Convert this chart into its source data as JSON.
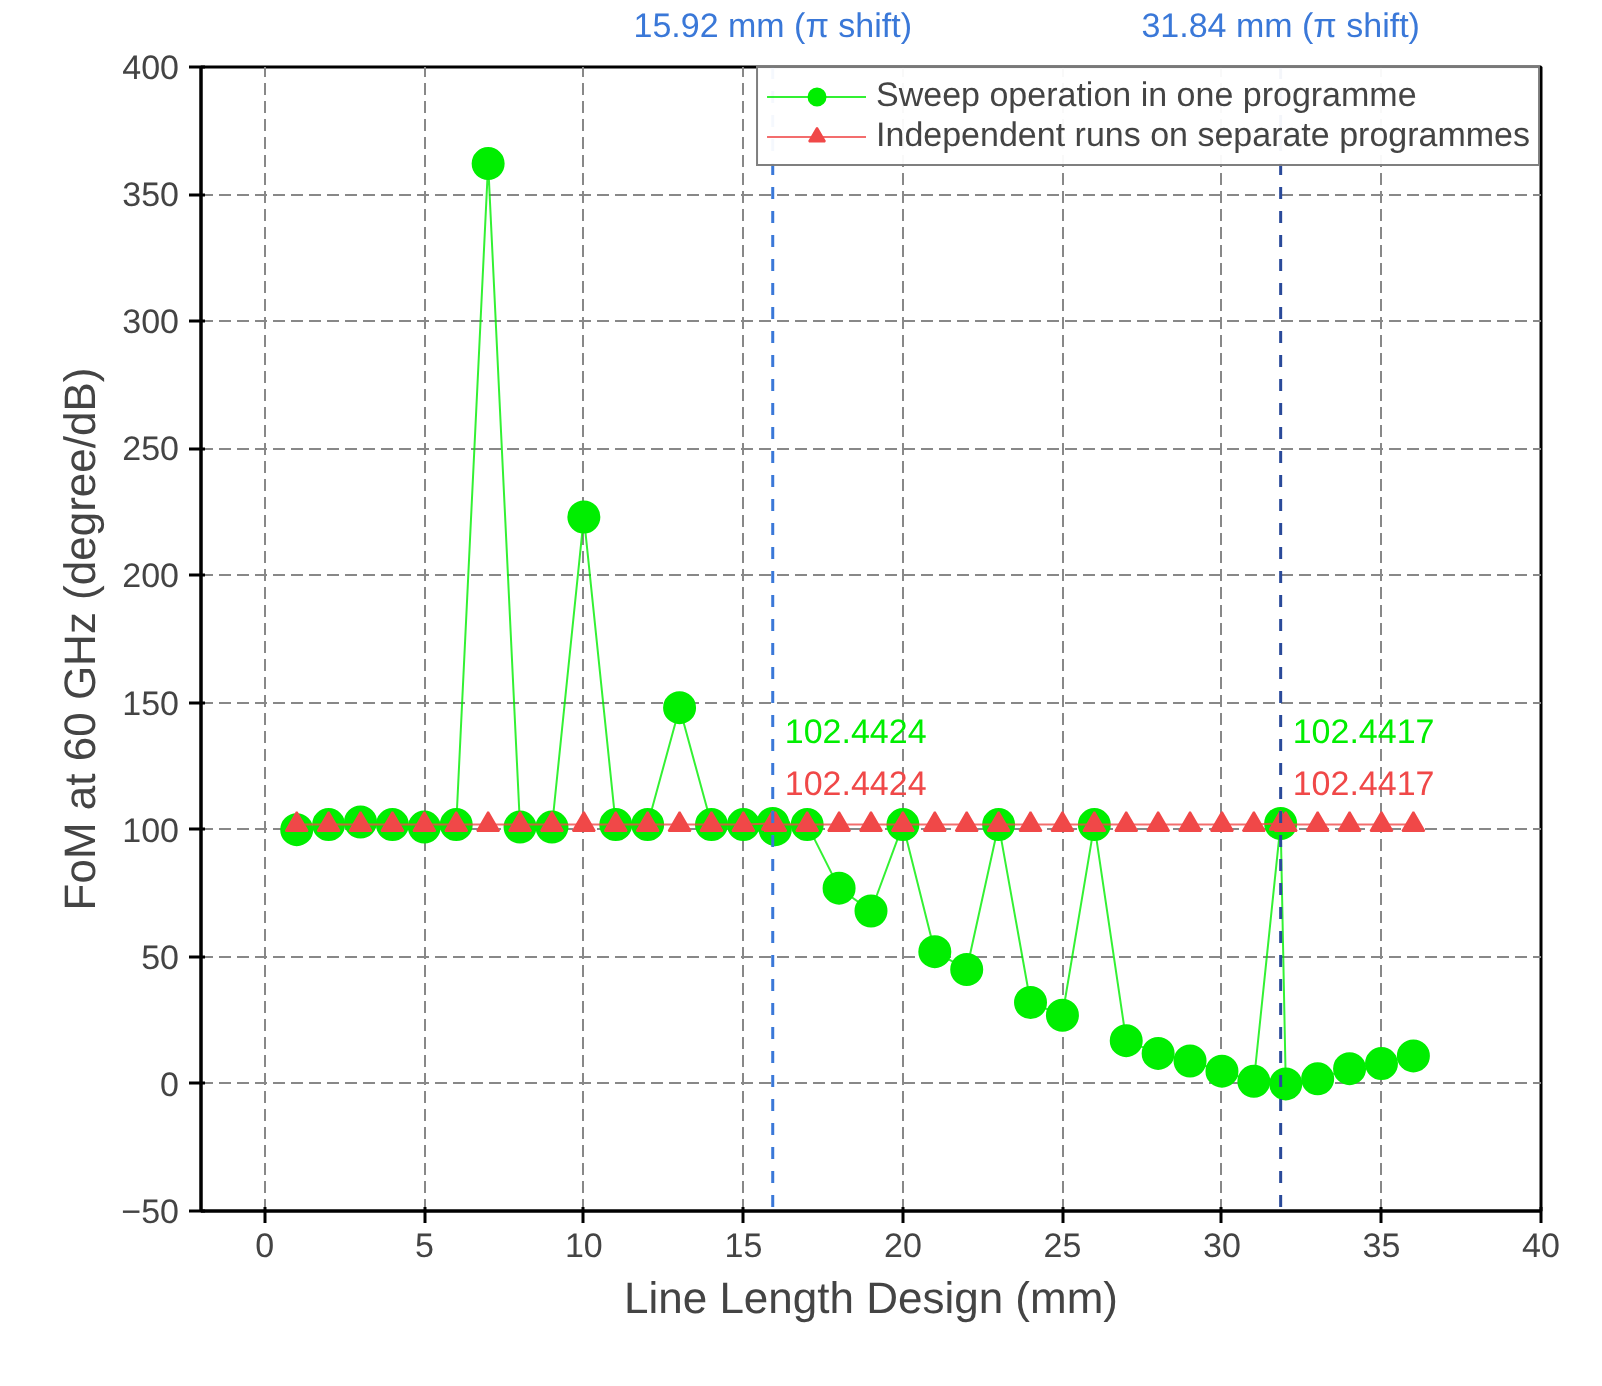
{
  "chart_data": {
    "type": "line",
    "xlabel": "Line Length Design (mm)",
    "ylabel": "FoM at 60 GHz (degree/dB)",
    "xlim": [
      -2,
      40
    ],
    "ylim": [
      -50,
      400
    ],
    "xticks": [
      0,
      5,
      10,
      15,
      20,
      25,
      30,
      35,
      40
    ],
    "yticks": [
      -50,
      0,
      50,
      100,
      150,
      200,
      250,
      300,
      350,
      400
    ],
    "grid": true,
    "legend": "top right",
    "line_style": "solid",
    "series": [
      {
        "name": "Sweep operation in one programme",
        "color": "#00ee00",
        "marker": "circle",
        "x": [
          1,
          2,
          3,
          4,
          5,
          6,
          7,
          8,
          9,
          10,
          11,
          12,
          13,
          14,
          15,
          15.92,
          16,
          17,
          18,
          19,
          20,
          21,
          22,
          23,
          24,
          25,
          26,
          27,
          28,
          29,
          30,
          31,
          31.84,
          32,
          33,
          34,
          35,
          36
        ],
        "values": [
          100,
          102,
          103,
          102,
          101,
          102,
          362,
          101,
          101,
          223,
          102,
          102,
          148,
          102,
          102,
          102.4424,
          100,
          102,
          77,
          68,
          102,
          52,
          45,
          102,
          32,
          27,
          102,
          17,
          12,
          9,
          5,
          1,
          102.4417,
          0,
          2,
          6,
          8,
          11
        ],
        "value_labels": [
          null,
          null,
          null,
          null,
          null,
          null,
          null,
          null,
          null,
          null,
          null,
          null,
          null,
          null,
          null,
          "102.4424",
          null,
          null,
          null,
          null,
          null,
          null,
          null,
          null,
          null,
          null,
          null,
          null,
          null,
          null,
          null,
          null,
          "102.4417",
          null,
          null,
          null,
          null,
          null
        ]
      },
      {
        "name": "Independent runs on separate programmes",
        "color": "#f04848",
        "marker": "triangle",
        "x": [
          1,
          2,
          3,
          4,
          5,
          6,
          7,
          8,
          9,
          10,
          11,
          12,
          13,
          14,
          15,
          15.92,
          16,
          17,
          18,
          19,
          20,
          21,
          22,
          23,
          24,
          25,
          26,
          27,
          28,
          29,
          30,
          31,
          31.84,
          32,
          33,
          34,
          35,
          36
        ],
        "values": [
          102,
          102,
          102,
          102,
          102,
          102,
          102,
          102,
          102,
          102,
          102,
          102,
          102,
          102,
          102,
          102.4424,
          102,
          102,
          102,
          102,
          102,
          102,
          102,
          102,
          102,
          102,
          102,
          102,
          102,
          102,
          102,
          102,
          102.4417,
          102,
          102,
          102,
          102,
          102
        ],
        "value_labels": [
          null,
          null,
          null,
          null,
          null,
          null,
          null,
          null,
          null,
          null,
          null,
          null,
          null,
          null,
          null,
          "102.4424",
          null,
          null,
          null,
          null,
          null,
          null,
          null,
          null,
          null,
          null,
          null,
          null,
          null,
          null,
          null,
          null,
          "102.4417",
          null,
          null,
          null,
          null,
          null
        ]
      }
    ],
    "ref_lines": [
      {
        "axis": "x",
        "value": 15.92,
        "label": "15.92 mm (π shift)",
        "color": "#3a78d8",
        "line_style": "dashed"
      },
      {
        "axis": "x",
        "value": 31.84,
        "label": "31.84 mm (π shift)",
        "color": "#2a4a9a",
        "line_style": "dashed"
      }
    ]
  }
}
